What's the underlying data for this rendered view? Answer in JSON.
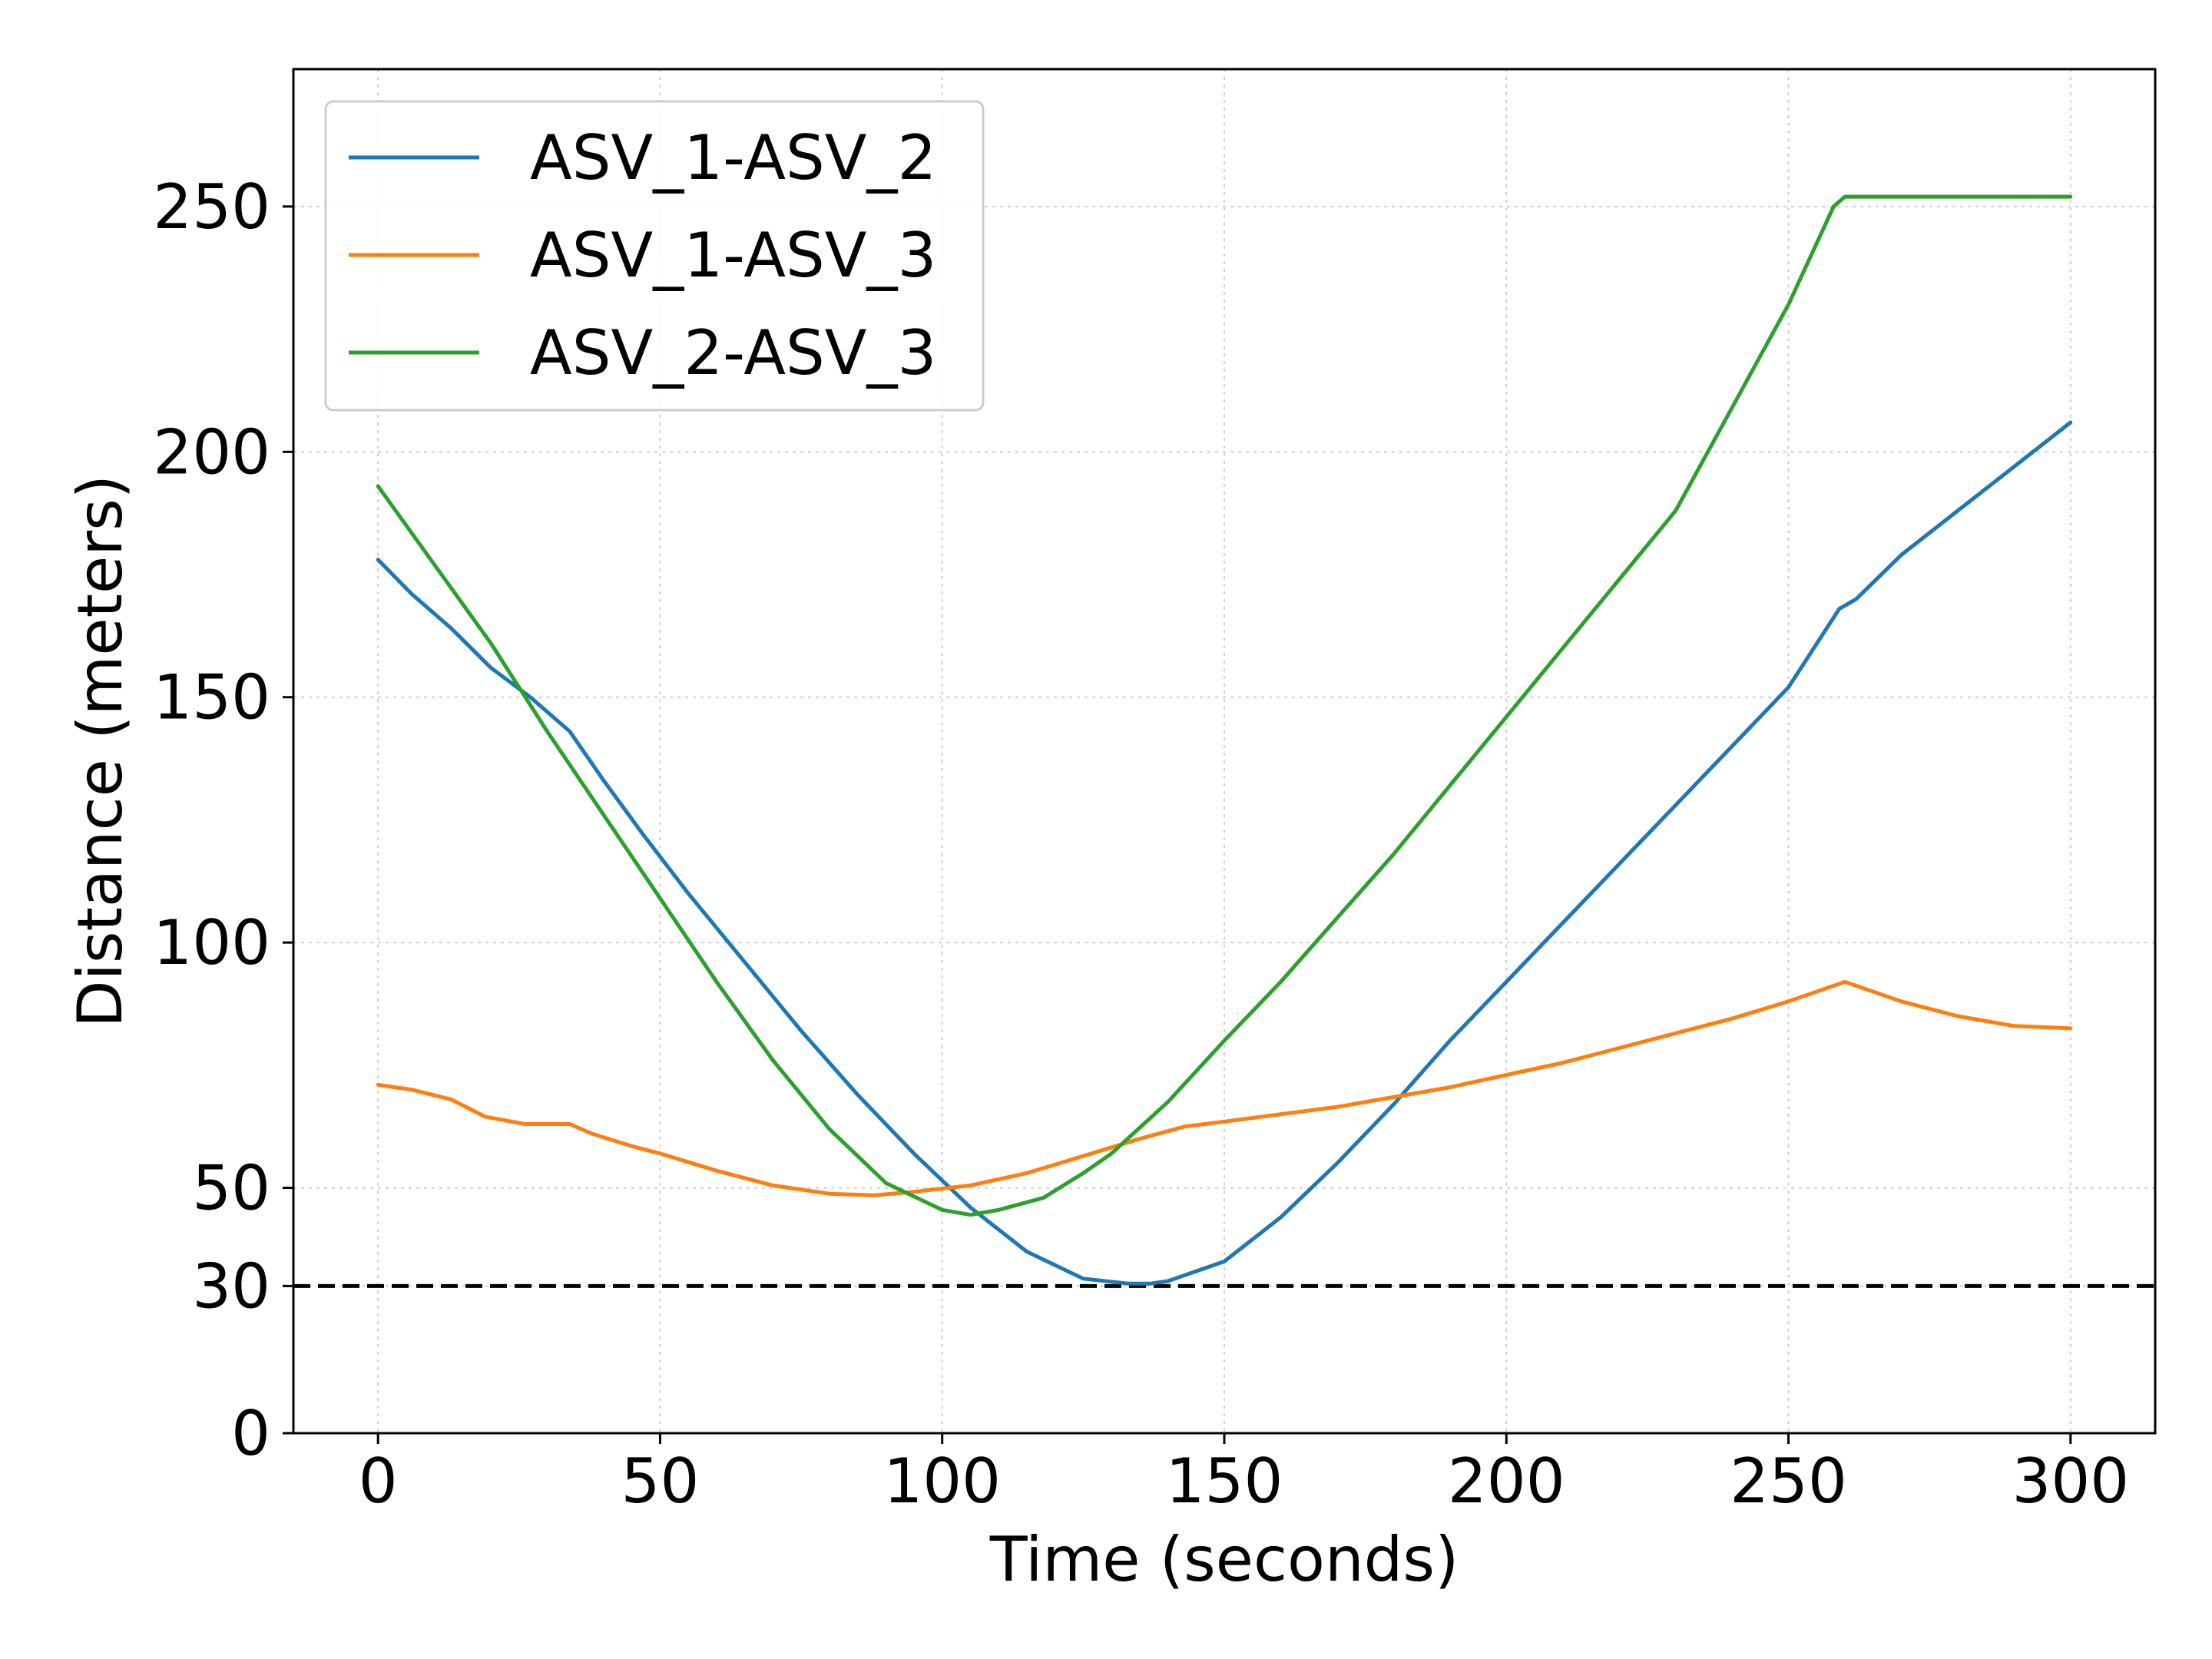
{
  "chart_data": {
    "type": "line",
    "title": "",
    "xlabel": "Time (seconds)",
    "ylabel": "Distance (meters)",
    "xlim": [
      -15,
      315
    ],
    "ylim": [
      0,
      278
    ],
    "xticks": [
      0,
      50,
      100,
      150,
      200,
      250,
      300
    ],
    "yticks": [
      0,
      30,
      50,
      100,
      150,
      200,
      250
    ],
    "grid": true,
    "legend_position": "top-left",
    "threshold": {
      "value": 30,
      "style": "dashed",
      "color": "#000000"
    },
    "series": [
      {
        "name": "ASV_1-ASV_2",
        "color": "#1f77b4",
        "x": [
          0,
          6,
          13,
          20,
          27,
          34,
          40,
          47,
          55,
          65,
          75,
          85,
          95,
          105,
          115,
          125,
          133,
          137,
          140,
          150,
          160,
          170,
          180,
          190,
          200,
          210,
          220,
          230,
          240,
          250,
          259,
          262,
          270,
          280,
          290,
          300
        ],
        "y": [
          178,
          171,
          164,
          156,
          150,
          143,
          133,
          122,
          110,
          96,
          82,
          69,
          57,
          46,
          37,
          31.5,
          30.5,
          30.5,
          31,
          35,
          44,
          55,
          67,
          80,
          92,
          104,
          116,
          128,
          140,
          152,
          168,
          170,
          179,
          188,
          197,
          206
        ]
      },
      {
        "name": "ASV_1-ASV_3",
        "color": "#ff7f0e",
        "x": [
          0,
          6,
          13,
          19,
          26,
          34,
          38,
          45,
          50,
          60,
          70,
          80,
          88,
          95,
          105,
          115,
          125,
          135,
          143,
          150,
          160,
          170,
          180,
          190,
          200,
          210,
          220,
          230,
          240,
          250,
          260,
          270,
          280,
          290,
          300
        ],
        "y": [
          71,
          70,
          68,
          64.5,
          63,
          63,
          61,
          58.5,
          57,
          53.5,
          50.5,
          48.8,
          48.5,
          49.2,
          50.5,
          53,
          56.5,
          60,
          62.5,
          63.5,
          65,
          66.5,
          68.5,
          70.5,
          73,
          75.5,
          78.5,
          81.5,
          84.5,
          88,
          92,
          88,
          85,
          83,
          82.5
        ]
      },
      {
        "name": "ASV_2-ASV_3",
        "color": "#2ca02c",
        "x": [
          0,
          10,
          20,
          30,
          40,
          50,
          60,
          70,
          80,
          90,
          100,
          105,
          110,
          118,
          125,
          130,
          140,
          150,
          160,
          170,
          180,
          190,
          200,
          210,
          220,
          230,
          240,
          250,
          258,
          260,
          270,
          280,
          290,
          300
        ],
        "y": [
          193,
          177,
          161,
          143,
          126,
          109,
          92,
          76,
          62,
          51,
          45.5,
          44.5,
          45.5,
          48,
          53,
          57,
          67.5,
          80,
          92,
          105,
          118,
          132,
          146,
          160,
          174,
          188,
          209,
          230,
          250,
          252,
          252,
          252,
          252,
          252
        ]
      }
    ]
  }
}
